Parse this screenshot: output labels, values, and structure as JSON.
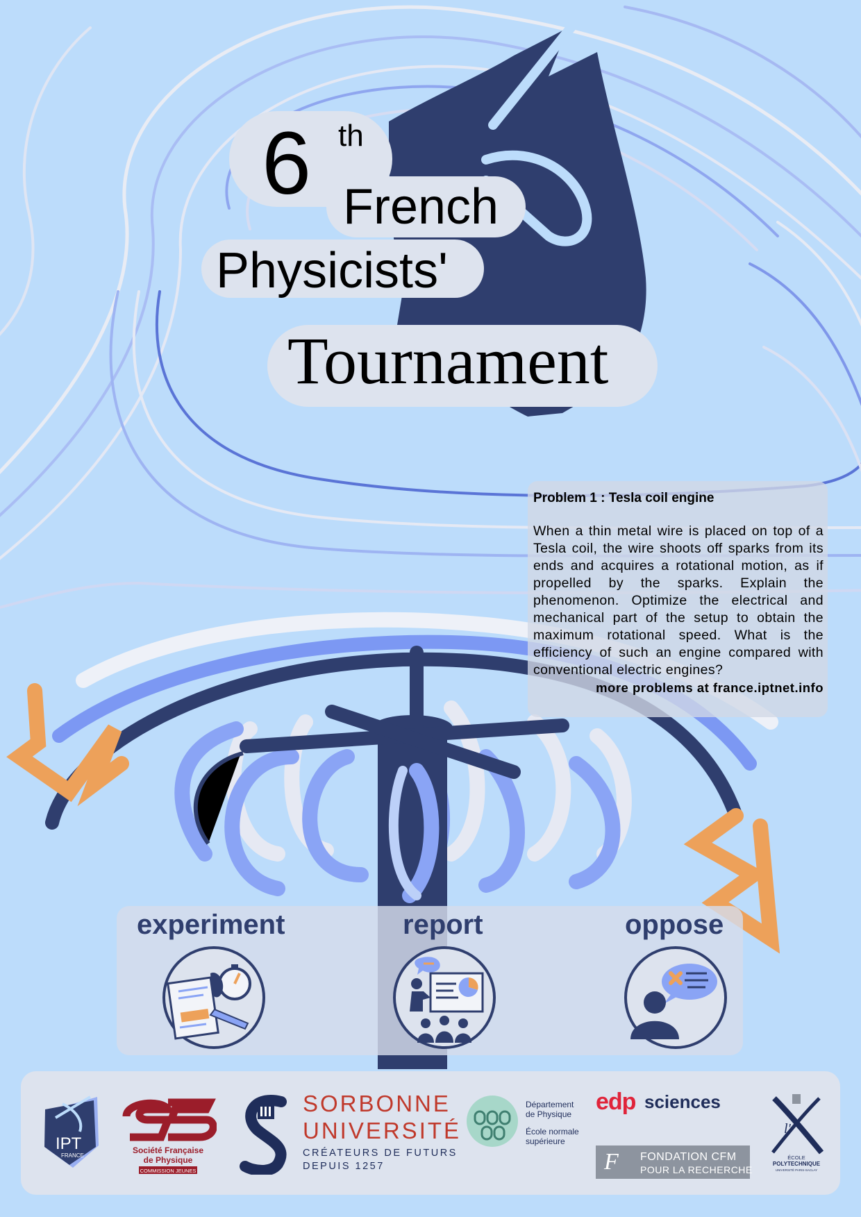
{
  "title": {
    "number": "6",
    "suffix": "th",
    "line1": "French",
    "line2": "Physicists'",
    "line3": "Tournament"
  },
  "problem": {
    "title": "Problem 1 : Tesla coil engine",
    "text": "When a thin metal wire is placed on top of a Tesla coil, the wire shoots off sparks from its ends and acquires a rotational motion, as if propelled by the sparks. Explain the phenomenon. Optimize the electrical and mechanical part of the setup to obtain the maximum rotational speed. What is the efficiency of such an engine compared with conventional electric engines?",
    "more": "more problems at france.iptnet.info"
  },
  "activities": [
    {
      "label": "experiment",
      "icon": "stopwatch-notebook-icon"
    },
    {
      "label": "report",
      "icon": "presentation-icon"
    },
    {
      "label": "oppose",
      "icon": "speech-bubble-icon"
    }
  ],
  "sponsors": {
    "ipt": {
      "line1": "IPT",
      "line2": "FRANCE"
    },
    "sfp": {
      "line1": "Société Française",
      "line2": "de Physique",
      "line3": "COMMISSION JEUNES"
    },
    "sorbonne": {
      "line1": "SORBONNE",
      "line2": "UNIVERSITÉ",
      "line3": "CRÉATEURS DE FUTURS",
      "line4": "DEPUIS 1257"
    },
    "ens": {
      "line1": "Département",
      "line2": "de Physique",
      "line3": "École normale",
      "line4": "supérieure"
    },
    "edp": {
      "part1": "edp",
      "part2": "sciences"
    },
    "cfm": {
      "line1": "FONDATION CFM",
      "line2": "POUR LA RECHERCHE"
    },
    "polytechnique": {
      "line1": "ÉCOLE",
      "line2": "POLYTECHNIQUE",
      "line3": "UNIVERSITÉ PARIS-SACLAY"
    }
  },
  "colors": {
    "background": "#bcdcfb",
    "navy": "#2f3e6e",
    "periwinkle": "#8aa4f5",
    "orange": "#eda15a",
    "panel": "#dde3ee"
  }
}
